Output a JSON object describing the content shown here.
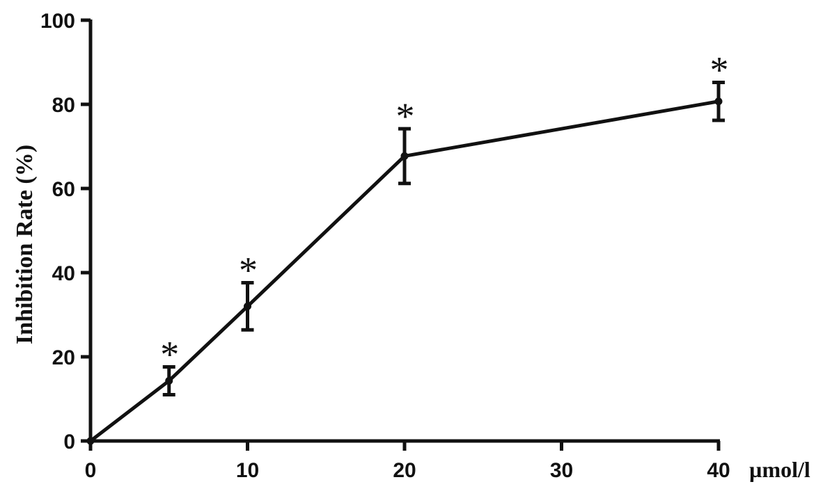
{
  "chart_data": {
    "type": "line",
    "title": "",
    "xlabel": "µmol/l",
    "ylabel": "Inhibition Rate (%)",
    "xlim": [
      0,
      40
    ],
    "ylim": [
      0,
      100
    ],
    "x_ticks": [
      "0",
      "10",
      "20",
      "30",
      "40"
    ],
    "y_ticks": [
      "0",
      "20",
      "40",
      "60",
      "80",
      "100"
    ],
    "grid": false,
    "legend": "none",
    "series": [
      {
        "x": [
          0,
          5,
          10,
          20,
          40
        ],
        "y": [
          0,
          14.3,
          32,
          67.7,
          80.7
        ],
        "error": [
          0,
          3.3,
          5.6,
          6.5,
          4.5
        ],
        "significance": [
          "",
          "*",
          "*",
          "*",
          "*"
        ]
      }
    ],
    "colors": {
      "line": "#111111"
    }
  }
}
